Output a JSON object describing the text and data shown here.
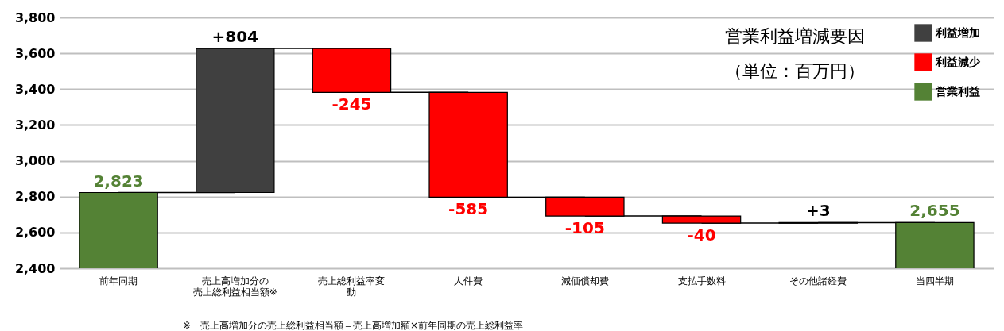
{
  "chart_data": {
    "type": "bar",
    "title": "営業利益増減要因",
    "subtitle": "（単位：百万円）",
    "categories": [
      "前年同期",
      "売上高増加分の売上総利益相当額※",
      "売上総利益率変動",
      "人件費",
      "減価償却費",
      "支払手数料",
      "その他諸経費",
      "当四半期"
    ],
    "series": [
      {
        "name": "利益増加",
        "color": "#404040",
        "values": [
          null,
          804,
          null,
          null,
          null,
          null,
          3,
          null
        ],
        "base": [
          null,
          2823,
          null,
          null,
          null,
          null,
          2652,
          null
        ],
        "value_labels": [
          null,
          "+804",
          null,
          null,
          null,
          null,
          "+3",
          null
        ]
      },
      {
        "name": "利益減少",
        "color": "#ff0000",
        "values": [
          null,
          null,
          -245,
          -585,
          -105,
          -40,
          null,
          null
        ],
        "base": [
          null,
          null,
          3627,
          3382,
          2797,
          2692,
          null,
          null
        ],
        "value_labels": [
          null,
          null,
          "-245",
          "-585",
          "-105",
          "-40",
          null,
          null
        ]
      },
      {
        "name": "営業利益",
        "color": "#548235",
        "values": [
          2823,
          null,
          null,
          null,
          null,
          null,
          null,
          2655
        ],
        "value_labels": [
          "2,823",
          null,
          null,
          null,
          null,
          null,
          null,
          "2,655"
        ]
      }
    ],
    "ylim": [
      2400,
      3800
    ],
    "yticks": [
      {
        "value": 2400,
        "label": "2,400"
      },
      {
        "value": 2600,
        "label": "2,600"
      },
      {
        "value": 2800,
        "label": "2,800"
      },
      {
        "value": 3000,
        "label": "3,000"
      },
      {
        "value": 3200,
        "label": "3,200"
      },
      {
        "value": 3400,
        "label": "3,400"
      },
      {
        "value": 3600,
        "label": "3,600"
      },
      {
        "value": 3800,
        "label": "3,800"
      }
    ],
    "grid": "y",
    "legend": "top right",
    "annotations": [
      "※　売上高増加分の売上総利益相当額＝売上高増加額×前年同期の売上総利益率"
    ]
  }
}
